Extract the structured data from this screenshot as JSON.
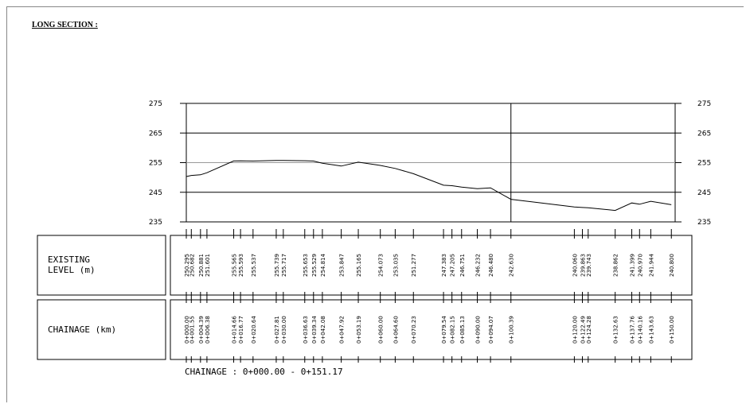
{
  "heading": "LONG SECTION :",
  "row_labels": {
    "existing": [
      "EXISTING",
      "LEVEL (m)"
    ],
    "chainage": "CHAINAGE (km)"
  },
  "footer": "CHAINAGE : 0+000.00 - 0+151.17",
  "chart_data": {
    "type": "line",
    "title": "LONG SECTION :",
    "xlim": [
      0,
      151.17
    ],
    "ylim": [
      235,
      275
    ],
    "y_ticks": [
      235,
      245,
      255,
      265,
      275
    ],
    "grid": "horizontal at 245, 255, 265 (255 grey)",
    "vertical_marker_x": 100.39,
    "series": [
      {
        "x": [
          0,
          1.55,
          4.39,
          6.38,
          14.66,
          16.77,
          20.64,
          27.81,
          30.0,
          36.63,
          39.34,
          42.08,
          47.92,
          53.19,
          60.0,
          64.6,
          70.23,
          79.54,
          82.15,
          85.13,
          90.0,
          94.07,
          100.39,
          120.0,
          122.49,
          124.28,
          132.63,
          137.76,
          140.16,
          143.63,
          150.0
        ],
        "y": [
          250.295,
          250.682,
          250.881,
          251.601,
          255.565,
          255.593,
          255.537,
          255.739,
          255.717,
          255.653,
          255.529,
          254.814,
          253.847,
          255.165,
          254.073,
          253.035,
          251.277,
          247.383,
          247.205,
          246.751,
          246.232,
          246.48,
          242.63,
          240.06,
          239.863,
          239.743,
          238.862,
          241.399,
          240.97,
          241.944,
          240.8
        ]
      }
    ],
    "level_labels": [
      "250.295",
      "250.682",
      "250.881",
      "251.601",
      "255.565",
      "255.593",
      "255.537",
      "255.739",
      "255.717",
      "255.653",
      "255.529",
      "254.814",
      "253.847",
      "255.165",
      "254.073",
      "253.035",
      "251.277",
      "247.383",
      "247.205",
      "246.751",
      "246.232",
      "246.480",
      "242.630",
      "240.060",
      "239.863",
      "239.743",
      "238.862",
      "241.399",
      "240.970",
      "241.944",
      "240.800"
    ],
    "chainage_labels": [
      "0+000.00",
      "0+001.55",
      "0+004.39",
      "0+006.38",
      "0+014.66",
      "0+016.77",
      "0+020.64",
      "0+027.81",
      "0+030.00",
      "0+036.63",
      "0+039.34",
      "0+042.08",
      "0+047.92",
      "0+053.19",
      "0+060.00",
      "0+064.60",
      "0+070.23",
      "0+079.54",
      "0+082.15",
      "0+085.13",
      "0+090.00",
      "0+094.07",
      "0+100.39",
      "0+120.00",
      "0+122.49",
      "0+124.28",
      "0+132.63",
      "0+137.76",
      "0+140.16",
      "0+143.63",
      "0+150.00"
    ]
  }
}
